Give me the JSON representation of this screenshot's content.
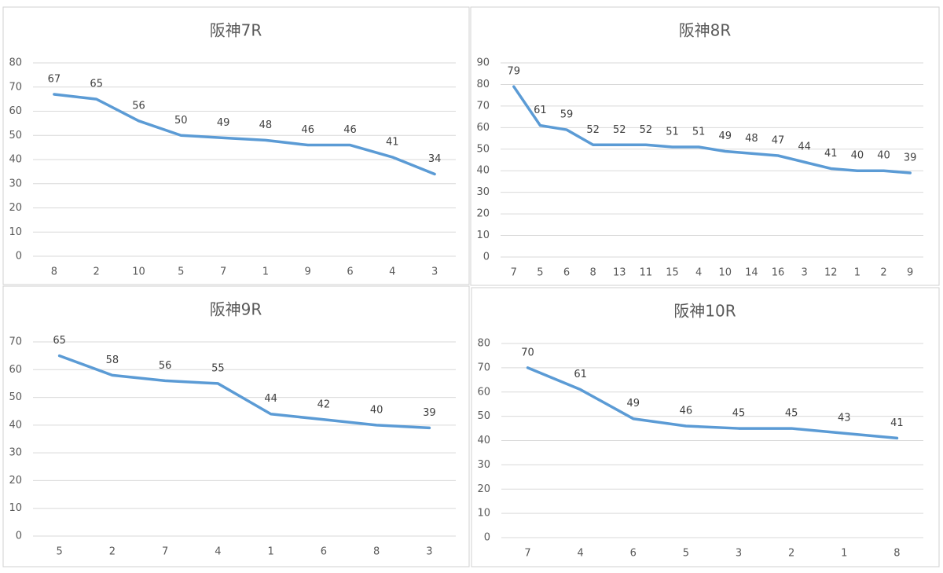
{
  "chart_data": [
    {
      "type": "line",
      "title": "阪神7R",
      "categories": [
        "8",
        "2",
        "10",
        "5",
        "7",
        "1",
        "9",
        "6",
        "4",
        "3"
      ],
      "values": [
        67,
        65,
        56,
        50,
        49,
        48,
        46,
        46,
        41,
        34
      ],
      "color": "#5b9bd5",
      "ylim": [
        0,
        80
      ],
      "yticks": [
        0,
        10,
        20,
        30,
        40,
        50,
        60,
        70,
        80
      ],
      "grid": true
    },
    {
      "type": "line",
      "title": "阪神8R",
      "categories": [
        "7",
        "5",
        "6",
        "8",
        "13",
        "11",
        "15",
        "4",
        "10",
        "14",
        "16",
        "3",
        "12",
        "1",
        "2",
        "9"
      ],
      "values": [
        79,
        61,
        59,
        52,
        52,
        52,
        51,
        51,
        49,
        48,
        47,
        44,
        41,
        40,
        40,
        39
      ],
      "color": "#5b9bd5",
      "ylim": [
        0,
        90
      ],
      "yticks": [
        0,
        10,
        20,
        30,
        40,
        50,
        60,
        70,
        80,
        90
      ],
      "grid": true
    },
    {
      "type": "line",
      "title": "阪神9R",
      "categories": [
        "5",
        "2",
        "7",
        "4",
        "1",
        "6",
        "8",
        "3"
      ],
      "values": [
        65,
        58,
        56,
        55,
        44,
        42,
        40,
        39
      ],
      "color": "#5b9bd5",
      "ylim": [
        0,
        70
      ],
      "yticks": [
        0,
        10,
        20,
        30,
        40,
        50,
        60,
        70
      ],
      "grid": true
    },
    {
      "type": "line",
      "title": "阪神10R",
      "categories": [
        "7",
        "4",
        "6",
        "5",
        "3",
        "2",
        "1",
        "8"
      ],
      "values": [
        70,
        61,
        49,
        46,
        45,
        45,
        43,
        41
      ],
      "color": "#5b9bd5",
      "ylim": [
        0,
        80
      ],
      "yticks": [
        0,
        10,
        20,
        30,
        40,
        50,
        60,
        70,
        80
      ],
      "grid": true
    }
  ]
}
